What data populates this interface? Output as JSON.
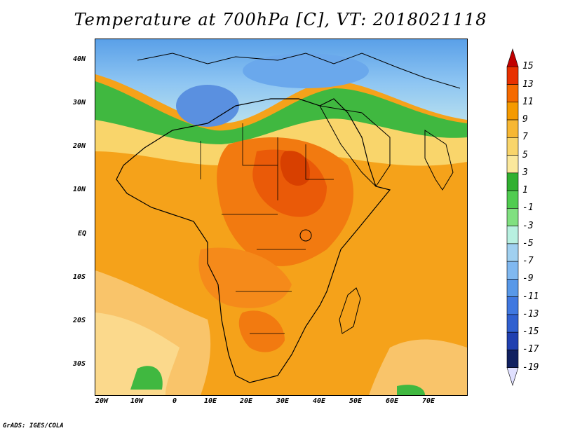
{
  "title": "Temperature at 700hPa [C], VT: 2018021118",
  "credit": "GrADS: IGES/COLA",
  "map": {
    "lat_labels": [
      "40N",
      "30N",
      "20N",
      "10N",
      "EQ",
      "10S",
      "20S",
      "30S"
    ],
    "lon_labels": [
      "20W",
      "10W",
      "0",
      "10E",
      "20E",
      "30E",
      "40E",
      "50E",
      "60E",
      "70E"
    ]
  },
  "colorbar": {
    "labels": [
      "15",
      "13",
      "11",
      "9",
      "7",
      "5",
      "3",
      "1",
      "-1",
      "-3",
      "-5",
      "-7",
      "-9",
      "-11",
      "-13",
      "-15",
      "-17",
      "-19"
    ],
    "colors": [
      "#c00000",
      "#e83000",
      "#f56a00",
      "#f59a00",
      "#f7b733",
      "#f9d56b",
      "#fbe89c",
      "#30b030",
      "#50cc50",
      "#80e080",
      "#b8f0e0",
      "#a0d0f0",
      "#80b8f0",
      "#5898e8",
      "#4078e0",
      "#3060d0",
      "#2040b0",
      "#102060",
      "#e0e0ff"
    ]
  }
}
